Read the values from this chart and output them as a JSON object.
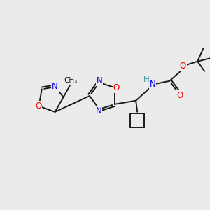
{
  "background_color": "#ebebeb",
  "bond_color": "#1a1a1a",
  "atom_colors": {
    "N": "#0000ee",
    "O": "#ee0000",
    "H": "#4a9999"
  },
  "figsize": [
    3.0,
    3.0
  ],
  "dpi": 100
}
